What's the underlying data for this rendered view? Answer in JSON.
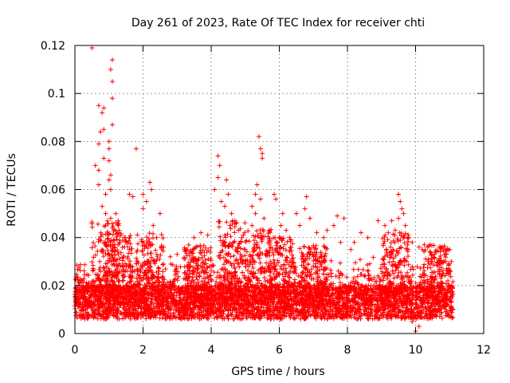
{
  "chart_data": {
    "type": "scatter",
    "title": "Day 261 of 2023, Rate Of TEC Index for receiver chti",
    "xlabel": "GPS time / hours",
    "ylabel": "ROTI / TECUs",
    "xlim": [
      0,
      12
    ],
    "ylim": [
      0,
      0.12
    ],
    "xticks": [
      0,
      2,
      4,
      6,
      8,
      10,
      12
    ],
    "yticks": [
      0,
      0.02,
      0.04,
      0.06,
      0.08,
      0.1,
      0.12
    ],
    "xtick_labels": [
      "0",
      "2",
      "4",
      "6",
      "8",
      "10",
      "12"
    ],
    "ytick_labels": [
      "0",
      "0.02",
      "0.04",
      "0.06",
      "0.08",
      "0.1",
      "0.12"
    ],
    "grid": true,
    "marker": "+",
    "color": "#ff0000",
    "data_extent_x": [
      0,
      11.1
    ],
    "baseline_band": [
      0.006,
      0.02
    ],
    "series": [
      {
        "name": "ROTI",
        "points": [
          [
            0.5,
            0.119
          ],
          [
            1.1,
            0.114
          ],
          [
            1.05,
            0.11
          ],
          [
            1.1,
            0.105
          ],
          [
            1.1,
            0.098
          ],
          [
            0.7,
            0.095
          ],
          [
            0.85,
            0.094
          ],
          [
            0.8,
            0.092
          ],
          [
            1.1,
            0.087
          ],
          [
            0.85,
            0.085
          ],
          [
            0.75,
            0.084
          ],
          [
            1.0,
            0.08
          ],
          [
            0.7,
            0.079
          ],
          [
            1.0,
            0.077
          ],
          [
            1.8,
            0.077
          ],
          [
            0.85,
            0.073
          ],
          [
            1.0,
            0.072
          ],
          [
            0.6,
            0.07
          ],
          [
            0.7,
            0.068
          ],
          [
            1.05,
            0.066
          ],
          [
            1.0,
            0.064
          ],
          [
            0.7,
            0.062
          ],
          [
            1.05,
            0.06
          ],
          [
            0.9,
            0.058
          ],
          [
            1.6,
            0.058
          ],
          [
            1.7,
            0.057
          ],
          [
            2.0,
            0.058
          ],
          [
            2.2,
            0.063
          ],
          [
            2.25,
            0.06
          ],
          [
            2.1,
            0.055
          ],
          [
            2.0,
            0.052
          ],
          [
            0.8,
            0.053
          ],
          [
            0.9,
            0.05
          ],
          [
            1.2,
            0.05
          ],
          [
            1.05,
            0.048
          ],
          [
            0.9,
            0.045
          ],
          [
            1.1,
            0.044
          ],
          [
            1.3,
            0.043
          ],
          [
            1.45,
            0.04
          ],
          [
            1.5,
            0.038
          ],
          [
            0.95,
            0.037
          ],
          [
            0.8,
            0.035
          ],
          [
            1.0,
            0.033
          ],
          [
            1.6,
            0.035
          ],
          [
            2.3,
            0.045
          ],
          [
            2.4,
            0.04
          ],
          [
            2.5,
            0.05
          ],
          [
            2.6,
            0.036
          ],
          [
            2.8,
            0.032
          ],
          [
            3.0,
            0.033
          ],
          [
            3.3,
            0.035
          ],
          [
            3.5,
            0.04
          ],
          [
            3.7,
            0.042
          ],
          [
            3.55,
            0.036
          ],
          [
            3.9,
            0.041
          ],
          [
            4.2,
            0.074
          ],
          [
            4.25,
            0.07
          ],
          [
            4.2,
            0.065
          ],
          [
            4.45,
            0.064
          ],
          [
            4.1,
            0.06
          ],
          [
            4.3,
            0.055
          ],
          [
            4.5,
            0.058
          ],
          [
            4.4,
            0.053
          ],
          [
            4.6,
            0.05
          ],
          [
            4.7,
            0.047
          ],
          [
            4.55,
            0.045
          ],
          [
            4.8,
            0.043
          ],
          [
            4.4,
            0.041
          ],
          [
            4.9,
            0.04
          ],
          [
            4.65,
            0.038
          ],
          [
            5.0,
            0.035
          ],
          [
            5.4,
            0.082
          ],
          [
            5.45,
            0.077
          ],
          [
            5.5,
            0.075
          ],
          [
            5.5,
            0.073
          ],
          [
            5.35,
            0.062
          ],
          [
            5.3,
            0.058
          ],
          [
            5.45,
            0.056
          ],
          [
            5.2,
            0.053
          ],
          [
            5.3,
            0.05
          ],
          [
            5.55,
            0.048
          ],
          [
            5.2,
            0.045
          ],
          [
            5.7,
            0.043
          ],
          [
            5.85,
            0.058
          ],
          [
            5.9,
            0.056
          ],
          [
            6.1,
            0.05
          ],
          [
            6.05,
            0.045
          ],
          [
            6.2,
            0.043
          ],
          [
            6.3,
            0.04
          ],
          [
            6.5,
            0.05
          ],
          [
            6.6,
            0.045
          ],
          [
            6.8,
            0.057
          ],
          [
            6.75,
            0.052
          ],
          [
            6.9,
            0.048
          ],
          [
            7.1,
            0.042
          ],
          [
            7.3,
            0.04
          ],
          [
            7.4,
            0.043
          ],
          [
            7.6,
            0.045
          ],
          [
            7.7,
            0.049
          ],
          [
            7.9,
            0.048
          ],
          [
            7.8,
            0.038
          ],
          [
            8.1,
            0.035
          ],
          [
            8.2,
            0.038
          ],
          [
            8.4,
            0.042
          ],
          [
            8.6,
            0.04
          ],
          [
            8.9,
            0.047
          ],
          [
            9.1,
            0.045
          ],
          [
            9.2,
            0.042
          ],
          [
            9.3,
            0.047
          ],
          [
            9.5,
            0.058
          ],
          [
            9.55,
            0.055
          ],
          [
            9.6,
            0.052
          ],
          [
            9.65,
            0.05
          ],
          [
            9.5,
            0.048
          ],
          [
            9.7,
            0.045
          ],
          [
            9.4,
            0.043
          ],
          [
            9.8,
            0.04
          ],
          [
            9.9,
            0.038
          ],
          [
            10.1,
            0.036
          ],
          [
            10.2,
            0.035
          ],
          [
            10.5,
            0.03
          ],
          [
            10.6,
            0.034
          ],
          [
            10.8,
            0.036
          ],
          [
            10.9,
            0.033
          ],
          [
            11.0,
            0.035
          ],
          [
            11.05,
            0.03
          ],
          [
            10.0,
            0.001
          ],
          [
            10.1,
            0.003
          ],
          [
            9.9,
            0.005
          ]
        ]
      }
    ]
  }
}
